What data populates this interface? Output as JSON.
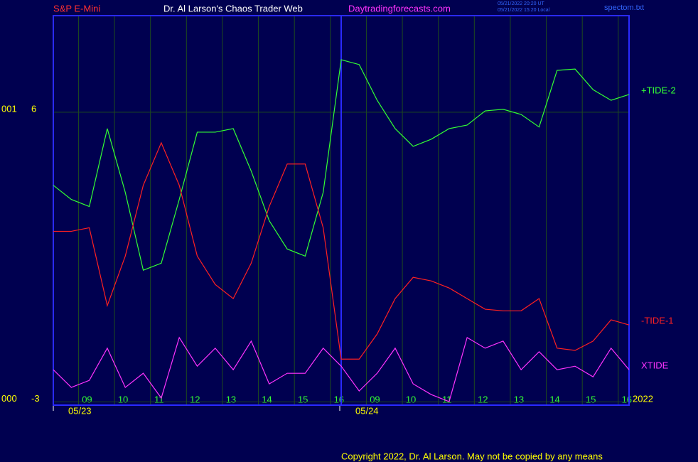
{
  "chart_data": {
    "type": "line",
    "header": {
      "left": "S&P E-Mini",
      "center": "Dr. Al Larson's Chaos Trader Web",
      "site": "Daytradingforecasts.com",
      "stamp_ut": "05/21/2022 20:20 UT",
      "stamp_local": "05/21/2022 15:20 Local",
      "file": "spectom.txt"
    },
    "footer": "Copyright 2022, Dr. Al Larson. May not be copied by any means",
    "year": "2022",
    "day_labels": [
      "05/23",
      "05/24"
    ],
    "y_side_labels": [
      "001",
      "000"
    ],
    "x": [
      0,
      0.5,
      1,
      1.5,
      2,
      2.5,
      3,
      3.5,
      4,
      4.5,
      5,
      5.5,
      6,
      6.5,
      7,
      7.5,
      8,
      8.5,
      9,
      9.5,
      10,
      10.5,
      11,
      11.5,
      12,
      12.5,
      13,
      13.5,
      14,
      14.5,
      15,
      15.5,
      16
    ],
    "xlim": [
      0,
      16
    ],
    "xticks": [
      {
        "value": 0.7,
        "label": "09"
      },
      {
        "value": 1.7,
        "label": "10"
      },
      {
        "value": 2.7,
        "label": "11"
      },
      {
        "value": 3.7,
        "label": "12"
      },
      {
        "value": 4.7,
        "label": "13"
      },
      {
        "value": 5.7,
        "label": "14"
      },
      {
        "value": 6.7,
        "label": "15"
      },
      {
        "value": 7.7,
        "label": "16"
      },
      {
        "value": 8.7,
        "label": "09"
      },
      {
        "value": 9.7,
        "label": "10"
      },
      {
        "value": 10.7,
        "label": "11"
      },
      {
        "value": 11.7,
        "label": "12"
      },
      {
        "value": 12.7,
        "label": "13"
      },
      {
        "value": 13.7,
        "label": "14"
      },
      {
        "value": 14.7,
        "label": "15"
      },
      {
        "value": 15.7,
        "label": "16"
      }
    ],
    "ylim": [
      -3.1,
      9
    ],
    "yticks": [
      6,
      -3
    ],
    "series": [
      {
        "name": "+TIDE-2",
        "color": "#33ff33",
        "values": [
          3.73,
          3.29,
          3.07,
          5.49,
          3.51,
          1.09,
          1.31,
          3.29,
          5.38,
          5.38,
          5.49,
          4.17,
          2.63,
          1.75,
          1.53,
          3.51,
          7.63,
          7.48,
          6.37,
          5.49,
          4.94,
          5.16,
          5.49,
          5.6,
          6.04,
          6.09,
          5.93,
          5.54,
          7.3,
          7.34,
          6.7,
          6.37,
          6.55
        ]
      },
      {
        "name": "-TIDE-1",
        "color": "#ff2020",
        "values": [
          2.3,
          2.3,
          2.41,
          -0.01,
          1.53,
          3.73,
          5.05,
          3.73,
          1.53,
          0.65,
          0.21,
          1.31,
          3.07,
          4.39,
          4.39,
          2.41,
          -1.67,
          -1.67,
          -0.89,
          0.21,
          0.87,
          0.76,
          0.54,
          0.21,
          -0.12,
          -0.17,
          -0.17,
          0.21,
          -1.33,
          -1.4,
          -1.11,
          -0.45,
          -0.61
        ]
      },
      {
        "name": "XTIDE",
        "color": "#ff33ff",
        "values": [
          -2,
          -2.55,
          -2.33,
          -1.33,
          -2.55,
          -2.11,
          -2.88,
          -1,
          -1.89,
          -1.33,
          -2,
          -1.11,
          -2.44,
          -2.11,
          -2.11,
          -1.33,
          -1.89,
          -2.66,
          -2.11,
          -1.33,
          -2.44,
          -2.77,
          -2.99,
          -1,
          -1.33,
          -1.11,
          -2,
          -1.44,
          -2,
          -1.89,
          -2.22,
          -1.33,
          -2
        ]
      }
    ]
  }
}
